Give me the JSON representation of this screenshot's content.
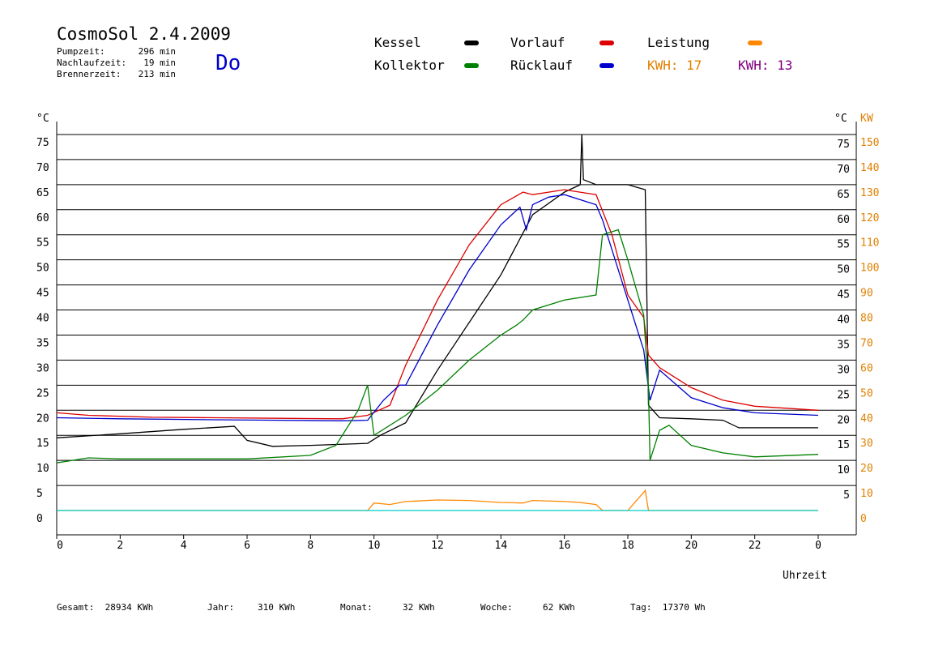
{
  "header": {
    "title": "CosmoSol 2.4.2009",
    "day": "Do",
    "stats": [
      {
        "label": "Pumpzeit:",
        "value": "296 min"
      },
      {
        "label": "Nachlaufzeit:",
        "value": "19 min"
      },
      {
        "label": "Brennerzeit:",
        "value": "213 min"
      }
    ]
  },
  "legend": {
    "kessel": {
      "label": "Kessel",
      "color": "#000000"
    },
    "vorlauf": {
      "label": "Vorlauf",
      "color": "#dd0000"
    },
    "leistung": {
      "label": "Leistung",
      "color": "#ff8800"
    },
    "kollektor": {
      "label": "Kollektor",
      "color": "#008000"
    },
    "ruecklauf": {
      "label": "Rücklauf",
      "color": "#0000cc"
    },
    "kwh_orange": {
      "label": "KWH:",
      "value": "17",
      "color": "#e08000"
    },
    "kwh_purple": {
      "label": "KWH:",
      "value": "13",
      "color": "#800080"
    }
  },
  "footer": [
    {
      "label": "Gesamt:",
      "value": "28934 KWh"
    },
    {
      "label": "Jahr:",
      "value": "310 KWh"
    },
    {
      "label": "Monat:",
      "value": "32 KWh"
    },
    {
      "label": "Woche:",
      "value": "62 KWh"
    },
    {
      "label": "Tag:",
      "value": "17370 Wh"
    }
  ],
  "chart_data": {
    "type": "line",
    "xlabel": "Uhrzeit",
    "ylabel_left": "°C",
    "ylabel_right_temp": "°C",
    "ylabel_right_power": "KW",
    "xlim": [
      0,
      24
    ],
    "ylim": [
      0,
      75
    ],
    "grid": true,
    "x_ticks": [
      "0",
      "2",
      "4",
      "6",
      "8",
      "10",
      "12",
      "14",
      "16",
      "18",
      "20",
      "22",
      "0"
    ],
    "x_tick_values": [
      0,
      2,
      4,
      6,
      8,
      10,
      12,
      14,
      16,
      18,
      20,
      22,
      24
    ],
    "y_ticks_left": [
      0,
      5,
      10,
      15,
      20,
      25,
      30,
      35,
      40,
      45,
      50,
      55,
      60,
      65,
      70,
      75
    ],
    "y_ticks_right_temp": [
      5,
      10,
      15,
      20,
      25,
      30,
      35,
      40,
      45,
      50,
      55,
      60,
      65,
      70,
      75
    ],
    "y_ticks_right_kw": [
      0,
      10,
      20,
      30,
      40,
      50,
      60,
      70,
      80,
      90,
      100,
      110,
      120,
      130,
      140,
      150
    ],
    "series": [
      {
        "name": "Kessel",
        "color": "#000000",
        "x": [
          0,
          2,
          4,
          5.6,
          6,
          6.8,
          8,
          9.8,
          10.2,
          11,
          12,
          14,
          15,
          16,
          16.5,
          16.55,
          16.6,
          17,
          18,
          18.55,
          18.65,
          19,
          20,
          21,
          21.5,
          24
        ],
        "y": [
          14.5,
          15.3,
          16.2,
          16.8,
          14.0,
          12.8,
          13.0,
          13.4,
          15.0,
          17.5,
          28,
          47,
          59,
          63.5,
          65,
          75,
          66,
          65,
          65,
          64,
          21,
          18.5,
          18.3,
          18.0,
          16.5,
          16.5
        ]
      },
      {
        "name": "Vorlauf",
        "color": "#dd0000",
        "x": [
          0,
          1,
          3,
          5,
          7,
          9,
          9.8,
          10.5,
          11,
          12,
          13,
          14,
          14.7,
          15,
          16,
          17,
          17.5,
          18,
          18.5,
          18.65,
          19,
          20,
          21,
          22,
          24
        ],
        "y": [
          19.5,
          19,
          18.6,
          18.5,
          18.4,
          18.3,
          19,
          21,
          29,
          42,
          53,
          61,
          63.5,
          63,
          64,
          63,
          55,
          43,
          38.5,
          31,
          28.5,
          24.5,
          22,
          20.8,
          20
        ]
      },
      {
        "name": "Rücklauf",
        "color": "#0000cc",
        "x": [
          0,
          2,
          5,
          7,
          9,
          9.8,
          10.3,
          10.8,
          11,
          12,
          13,
          14,
          14.6,
          14.8,
          15,
          15.5,
          16,
          17,
          17.2,
          18,
          18.5,
          18.7,
          19,
          20,
          21,
          22,
          24
        ],
        "y": [
          18.5,
          18.3,
          18.1,
          18.0,
          17.9,
          18,
          22,
          25,
          25,
          37,
          48,
          57,
          60.5,
          56,
          61,
          62.5,
          63,
          61,
          58,
          42,
          32,
          22,
          28,
          22.5,
          20.5,
          19.5,
          19
        ]
      },
      {
        "name": "Kollektor",
        "color": "#008000",
        "x": [
          0,
          1,
          2,
          4,
          6,
          8,
          8.8,
          9.5,
          9.8,
          10,
          11,
          12,
          13,
          14,
          14.5,
          14.7,
          15,
          16,
          17,
          17.2,
          17.7,
          18,
          18.5,
          18.65,
          18.7,
          19,
          19.3,
          20,
          21,
          22,
          24
        ],
        "y": [
          9.5,
          10.5,
          10.3,
          10.3,
          10.3,
          11,
          13,
          20,
          25,
          15,
          19,
          24,
          30,
          35,
          37,
          38,
          40,
          42,
          43,
          55,
          56,
          50,
          39,
          24,
          10,
          16,
          17,
          13,
          11.5,
          10.7,
          11.2
        ]
      },
      {
        "name": "Leistung",
        "color": "#ff8800",
        "x": [
          0,
          9.8,
          10,
          10.5,
          11,
          12,
          13,
          14,
          14.7,
          15,
          16,
          16.5,
          17,
          17.2,
          18,
          18.55,
          18.65,
          19,
          24
        ],
        "y": [
          0,
          0,
          1.5,
          1.2,
          1.8,
          2.1,
          2.0,
          1.6,
          1.5,
          2.0,
          1.8,
          1.6,
          1.2,
          0,
          0,
          4,
          0,
          0,
          0
        ]
      },
      {
        "name": "Pumpe",
        "color": "#00cccc",
        "x": [
          0,
          24
        ],
        "y": [
          0,
          0
        ]
      }
    ]
  }
}
